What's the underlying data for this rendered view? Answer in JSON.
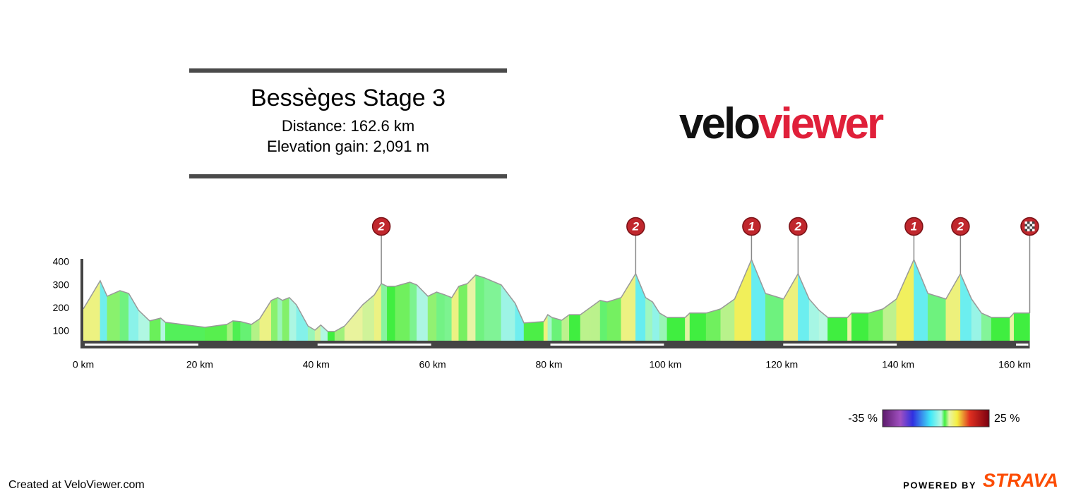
{
  "chart_data": {
    "type": "area",
    "title": "Bessèges Stage 3",
    "subtitle": [
      "Distance: 162.6 km",
      "Elevation gain: 2,091 m"
    ],
    "logo": [
      "velo",
      "viewer"
    ],
    "x": [
      0,
      2.9,
      4.1,
      6.3,
      7.8,
      9.5,
      11.4,
      13.3,
      14.1,
      20.9,
      24.7,
      25.7,
      27.0,
      28.9,
      30.3,
      32.3,
      33.4,
      34.2,
      35.4,
      36.6,
      38.6,
      39.8,
      40.8,
      42.0,
      43.2,
      44.9,
      48.0,
      50.0,
      51.2,
      52.2,
      53.6,
      56.1,
      57.3,
      59.2,
      60.7,
      62.1,
      63.3,
      64.5,
      66.0,
      67.4,
      68.9,
      71.8,
      74.2,
      75.7,
      79.1,
      79.8,
      80.5,
      82.2,
      83.5,
      85.4,
      87.1,
      88.8,
      90.0,
      92.4,
      94.9,
      96.6,
      97.8,
      99.0,
      100.3,
      103.4,
      104.2,
      107.0,
      109.5,
      111.9,
      114.8,
      117.2,
      120.3,
      122.8,
      124.7,
      126.4,
      127.9,
      131.3,
      132.0,
      134.9,
      137.4,
      139.7,
      142.7,
      145.1,
      148.2,
      150.7,
      152.6,
      154.3,
      156.0,
      159.2,
      159.9,
      162.6
    ],
    "values": [
      198,
      320,
      253,
      277,
      265,
      192,
      146,
      158,
      140,
      118,
      131,
      146,
      143,
      131,
      155,
      235,
      247,
      235,
      247,
      216,
      124,
      106,
      128,
      100,
      100,
      124,
      216,
      259,
      308,
      296,
      296,
      314,
      302,
      253,
      271,
      259,
      247,
      296,
      308,
      345,
      333,
      302,
      222,
      137,
      143,
      173,
      161,
      149,
      173,
      173,
      204,
      235,
      228,
      247,
      351,
      247,
      228,
      180,
      161,
      161,
      180,
      180,
      198,
      241,
      412,
      265,
      241,
      351,
      241,
      192,
      161,
      161,
      180,
      180,
      198,
      241,
      412,
      265,
      241,
      351,
      241,
      180,
      161,
      161,
      180,
      180
    ],
    "xlim": [
      0,
      162.6
    ],
    "ylim": [
      60,
      415
    ],
    "xticks": [
      {
        "value": 0,
        "label": "0 km"
      },
      {
        "value": 20,
        "label": "20 km"
      },
      {
        "value": 40,
        "label": "40 km"
      },
      {
        "value": 60,
        "label": "60 km"
      },
      {
        "value": 80,
        "label": "80 km"
      },
      {
        "value": 100,
        "label": "100 km"
      },
      {
        "value": 120,
        "label": "120 km"
      },
      {
        "value": 140,
        "label": "140 km"
      },
      {
        "value": 160,
        "label": "160 km"
      }
    ],
    "yticks": [
      100,
      200,
      300,
      400
    ],
    "climbs": [
      {
        "km": 51.2,
        "label": "2"
      },
      {
        "km": 94.9,
        "label": "2"
      },
      {
        "km": 114.8,
        "label": "1"
      },
      {
        "km": 122.8,
        "label": "2"
      },
      {
        "km": 142.7,
        "label": "1"
      },
      {
        "km": 150.7,
        "label": "2"
      }
    ],
    "finish_km": 162.6,
    "gradient_scale": {
      "min": {
        "value": -35,
        "label": "-35 %"
      },
      "max": {
        "value": 25,
        "label": "25 %"
      },
      "stops": [
        [
          -35,
          "#5c1a6b"
        ],
        [
          -25,
          "#a050c0"
        ],
        [
          -18,
          "#3030e0"
        ],
        [
          -8,
          "#40e8f8"
        ],
        [
          -2,
          "#b8f8e0"
        ],
        [
          0,
          "#40ee40"
        ],
        [
          2.5,
          "#e8f4a8"
        ],
        [
          7,
          "#f4ee40"
        ],
        [
          14,
          "#e03020"
        ],
        [
          25,
          "#7a0010"
        ]
      ]
    },
    "footer": {
      "left": "Created at VeloViewer.com",
      "powered": "POWERED BY",
      "brand": "STRAVA"
    }
  }
}
